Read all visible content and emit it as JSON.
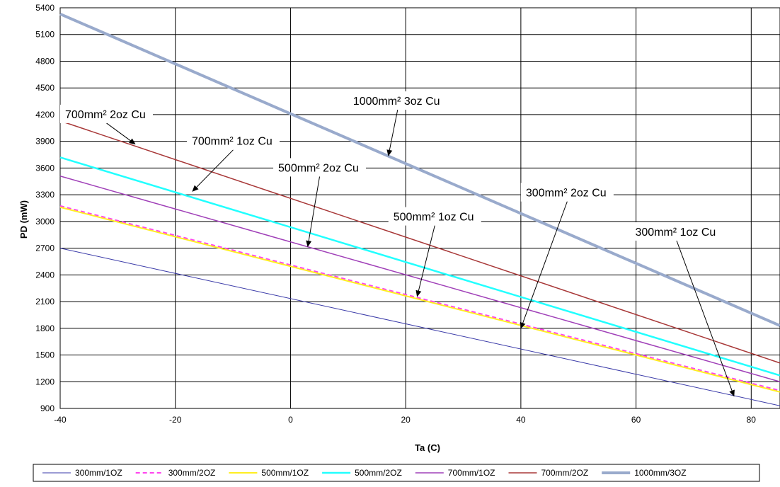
{
  "chart_data": {
    "type": "line",
    "xlabel": "Ta (C)",
    "ylabel": "PD (mW)",
    "xlim": [
      -40,
      85
    ],
    "ylim": [
      900,
      5400
    ],
    "xticks": [
      -40,
      -20,
      0,
      20,
      40,
      60,
      80
    ],
    "yticks": [
      900,
      1200,
      1500,
      1800,
      2100,
      2400,
      2700,
      3000,
      3300,
      3600,
      3900,
      4200,
      4500,
      4800,
      5100,
      5400
    ],
    "grid": true,
    "legend_position": "bottom",
    "x": [
      -40,
      85
    ],
    "series": [
      {
        "name": "300mm/1OZ",
        "values": [
          2700,
          930
        ],
        "color": "#3a3aa8",
        "dash": false,
        "width": 1
      },
      {
        "name": "300mm/2OZ",
        "values": [
          3175,
          1100
        ],
        "color": "#ff44ee",
        "dash": true,
        "width": 2
      },
      {
        "name": "500mm/1OZ",
        "values": [
          3160,
          1085
        ],
        "color": "#ffee22",
        "dash": false,
        "width": 2
      },
      {
        "name": "500mm/2OZ",
        "values": [
          3720,
          1270
        ],
        "color": "#22ffff",
        "dash": false,
        "width": 2.5
      },
      {
        "name": "700mm/1OZ",
        "values": [
          3510,
          1200
        ],
        "color": "#a040b8",
        "dash": false,
        "width": 1.5
      },
      {
        "name": "700mm/2OZ",
        "values": [
          4130,
          1410
        ],
        "color": "#a83838",
        "dash": false,
        "width": 1.5
      },
      {
        "name": "1000mm/3OZ",
        "values": [
          5330,
          1830
        ],
        "color": "#99aacc",
        "dash": false,
        "width": 4
      }
    ],
    "annotations": [
      {
        "text": "700mm² 2oz Cu",
        "box_x": -40,
        "box_y": 4200,
        "target_x": -27,
        "target_y": 3870
      },
      {
        "text": "700mm² 1oz Cu",
        "box_x": -18,
        "box_y": 3900,
        "target_x": -17,
        "target_y": 3340
      },
      {
        "text": "500mm² 2oz Cu",
        "box_x": -3,
        "box_y": 3600,
        "target_x": 3,
        "target_y": 2720
      },
      {
        "text": "1000mm² 3oz Cu",
        "box_x": 10,
        "box_y": 4350,
        "target_x": 17,
        "target_y": 3740
      },
      {
        "text": "500mm² 1oz Cu",
        "box_x": 17,
        "box_y": 3050,
        "target_x": 22,
        "target_y": 2160
      },
      {
        "text": "300mm² 2oz Cu",
        "box_x": 40,
        "box_y": 3320,
        "target_x": 40,
        "target_y": 1800
      },
      {
        "text": "300mm² 1oz Cu",
        "box_x": 59,
        "box_y": 2880,
        "target_x": 77,
        "target_y": 1040
      }
    ]
  }
}
